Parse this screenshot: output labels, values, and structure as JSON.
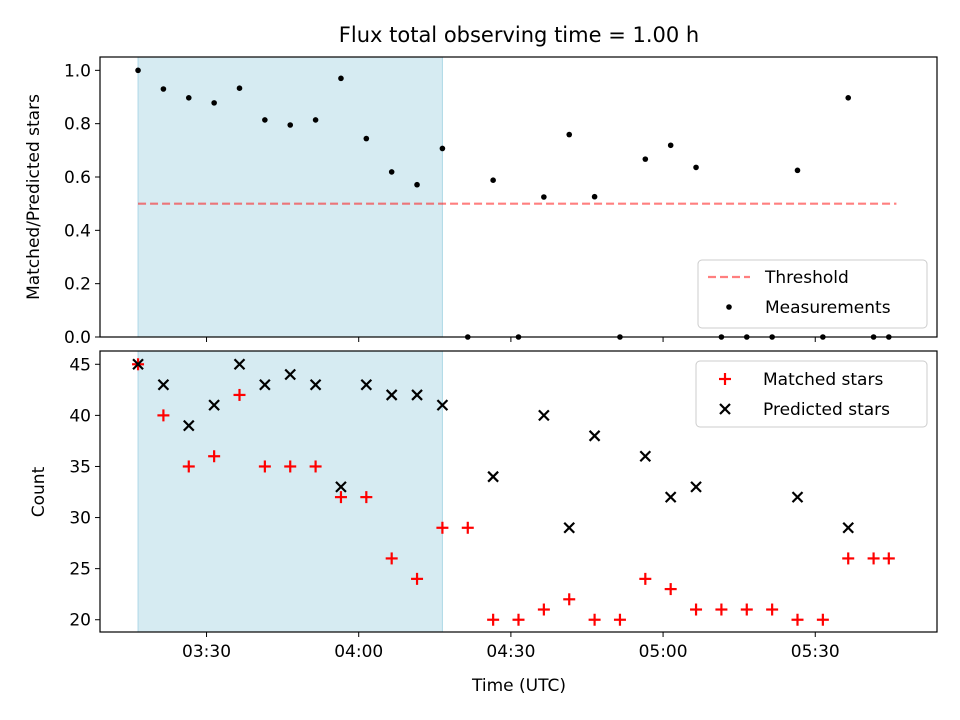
{
  "chart_data": {
    "title": "Flux total observing time = 1.00 h",
    "xlabel": "Time (UTC)",
    "x_tick_labels": [
      "03:30",
      "04:00",
      "04:30",
      "05:00",
      "05:30"
    ],
    "x_tick_minutes": [
      210,
      240,
      270,
      300,
      330
    ],
    "xlim_minutes": [
      189,
      354
    ],
    "observed_window_minutes": [
      196.5,
      256.5
    ],
    "colors": {
      "shade": "#add8e6",
      "threshold": "#ff0000",
      "measurements": "#000000",
      "matched": "#ff0000",
      "predicted": "#000000"
    },
    "x_minutes": [
      196.5,
      201.5,
      206.5,
      211.5,
      216.5,
      221.5,
      226.5,
      231.5,
      236.5,
      241.5,
      246.5,
      251.5,
      256.5,
      261.5,
      266.5,
      271.5,
      276.5,
      281.5,
      286.5,
      291.5,
      296.5,
      301.5,
      306.5,
      311.5,
      316.5,
      321.5,
      326.5,
      331.5,
      336.5,
      341.5,
      344.5
    ],
    "top": {
      "type": "scatter",
      "ylabel": "Matched/Predicted stars",
      "ylim": [
        0,
        1.05
      ],
      "yticks": [
        "0.0",
        "0.2",
        "0.4",
        "0.6",
        "0.8",
        "1.0"
      ],
      "threshold": {
        "name": "Threshold",
        "y": 0.5,
        "x_range": [
          196.5,
          346
        ]
      },
      "measurements": {
        "name": "Measurements",
        "y": [
          1.0,
          0.93,
          0.897,
          0.878,
          0.933,
          0.814,
          0.795,
          0.814,
          0.97,
          0.744,
          0.619,
          0.571,
          0.707,
          0.0,
          0.588,
          0.0,
          0.525,
          0.759,
          0.526,
          0.0,
          0.667,
          0.719,
          0.636,
          0.0,
          0.0,
          0.0,
          0.625,
          0.0,
          0.897,
          0.0,
          0.0
        ]
      },
      "legend_position": "lower-right"
    },
    "bottom": {
      "type": "scatter",
      "ylabel": "Count",
      "ylim": [
        18.8,
        46.3
      ],
      "yticks": [
        "20",
        "25",
        "30",
        "35",
        "40",
        "45"
      ],
      "legend_position": "upper-right",
      "series": [
        {
          "name": "Matched stars",
          "marker": "plus",
          "y": [
            45,
            40,
            35,
            36,
            42,
            35,
            35,
            35,
            32,
            32,
            26,
            24,
            29,
            29,
            20,
            20,
            21,
            22,
            20,
            20,
            24,
            23,
            21,
            21,
            21,
            21,
            20,
            20,
            26,
            26,
            26
          ]
        },
        {
          "name": "Predicted stars",
          "marker": "x",
          "y": [
            45,
            43,
            39,
            41,
            45,
            43,
            44,
            43,
            33,
            43,
            42,
            42,
            41,
            null,
            34,
            null,
            40,
            29,
            38,
            null,
            36,
            32,
            33,
            null,
            null,
            null,
            32,
            null,
            29,
            null,
            null
          ]
        }
      ]
    }
  }
}
